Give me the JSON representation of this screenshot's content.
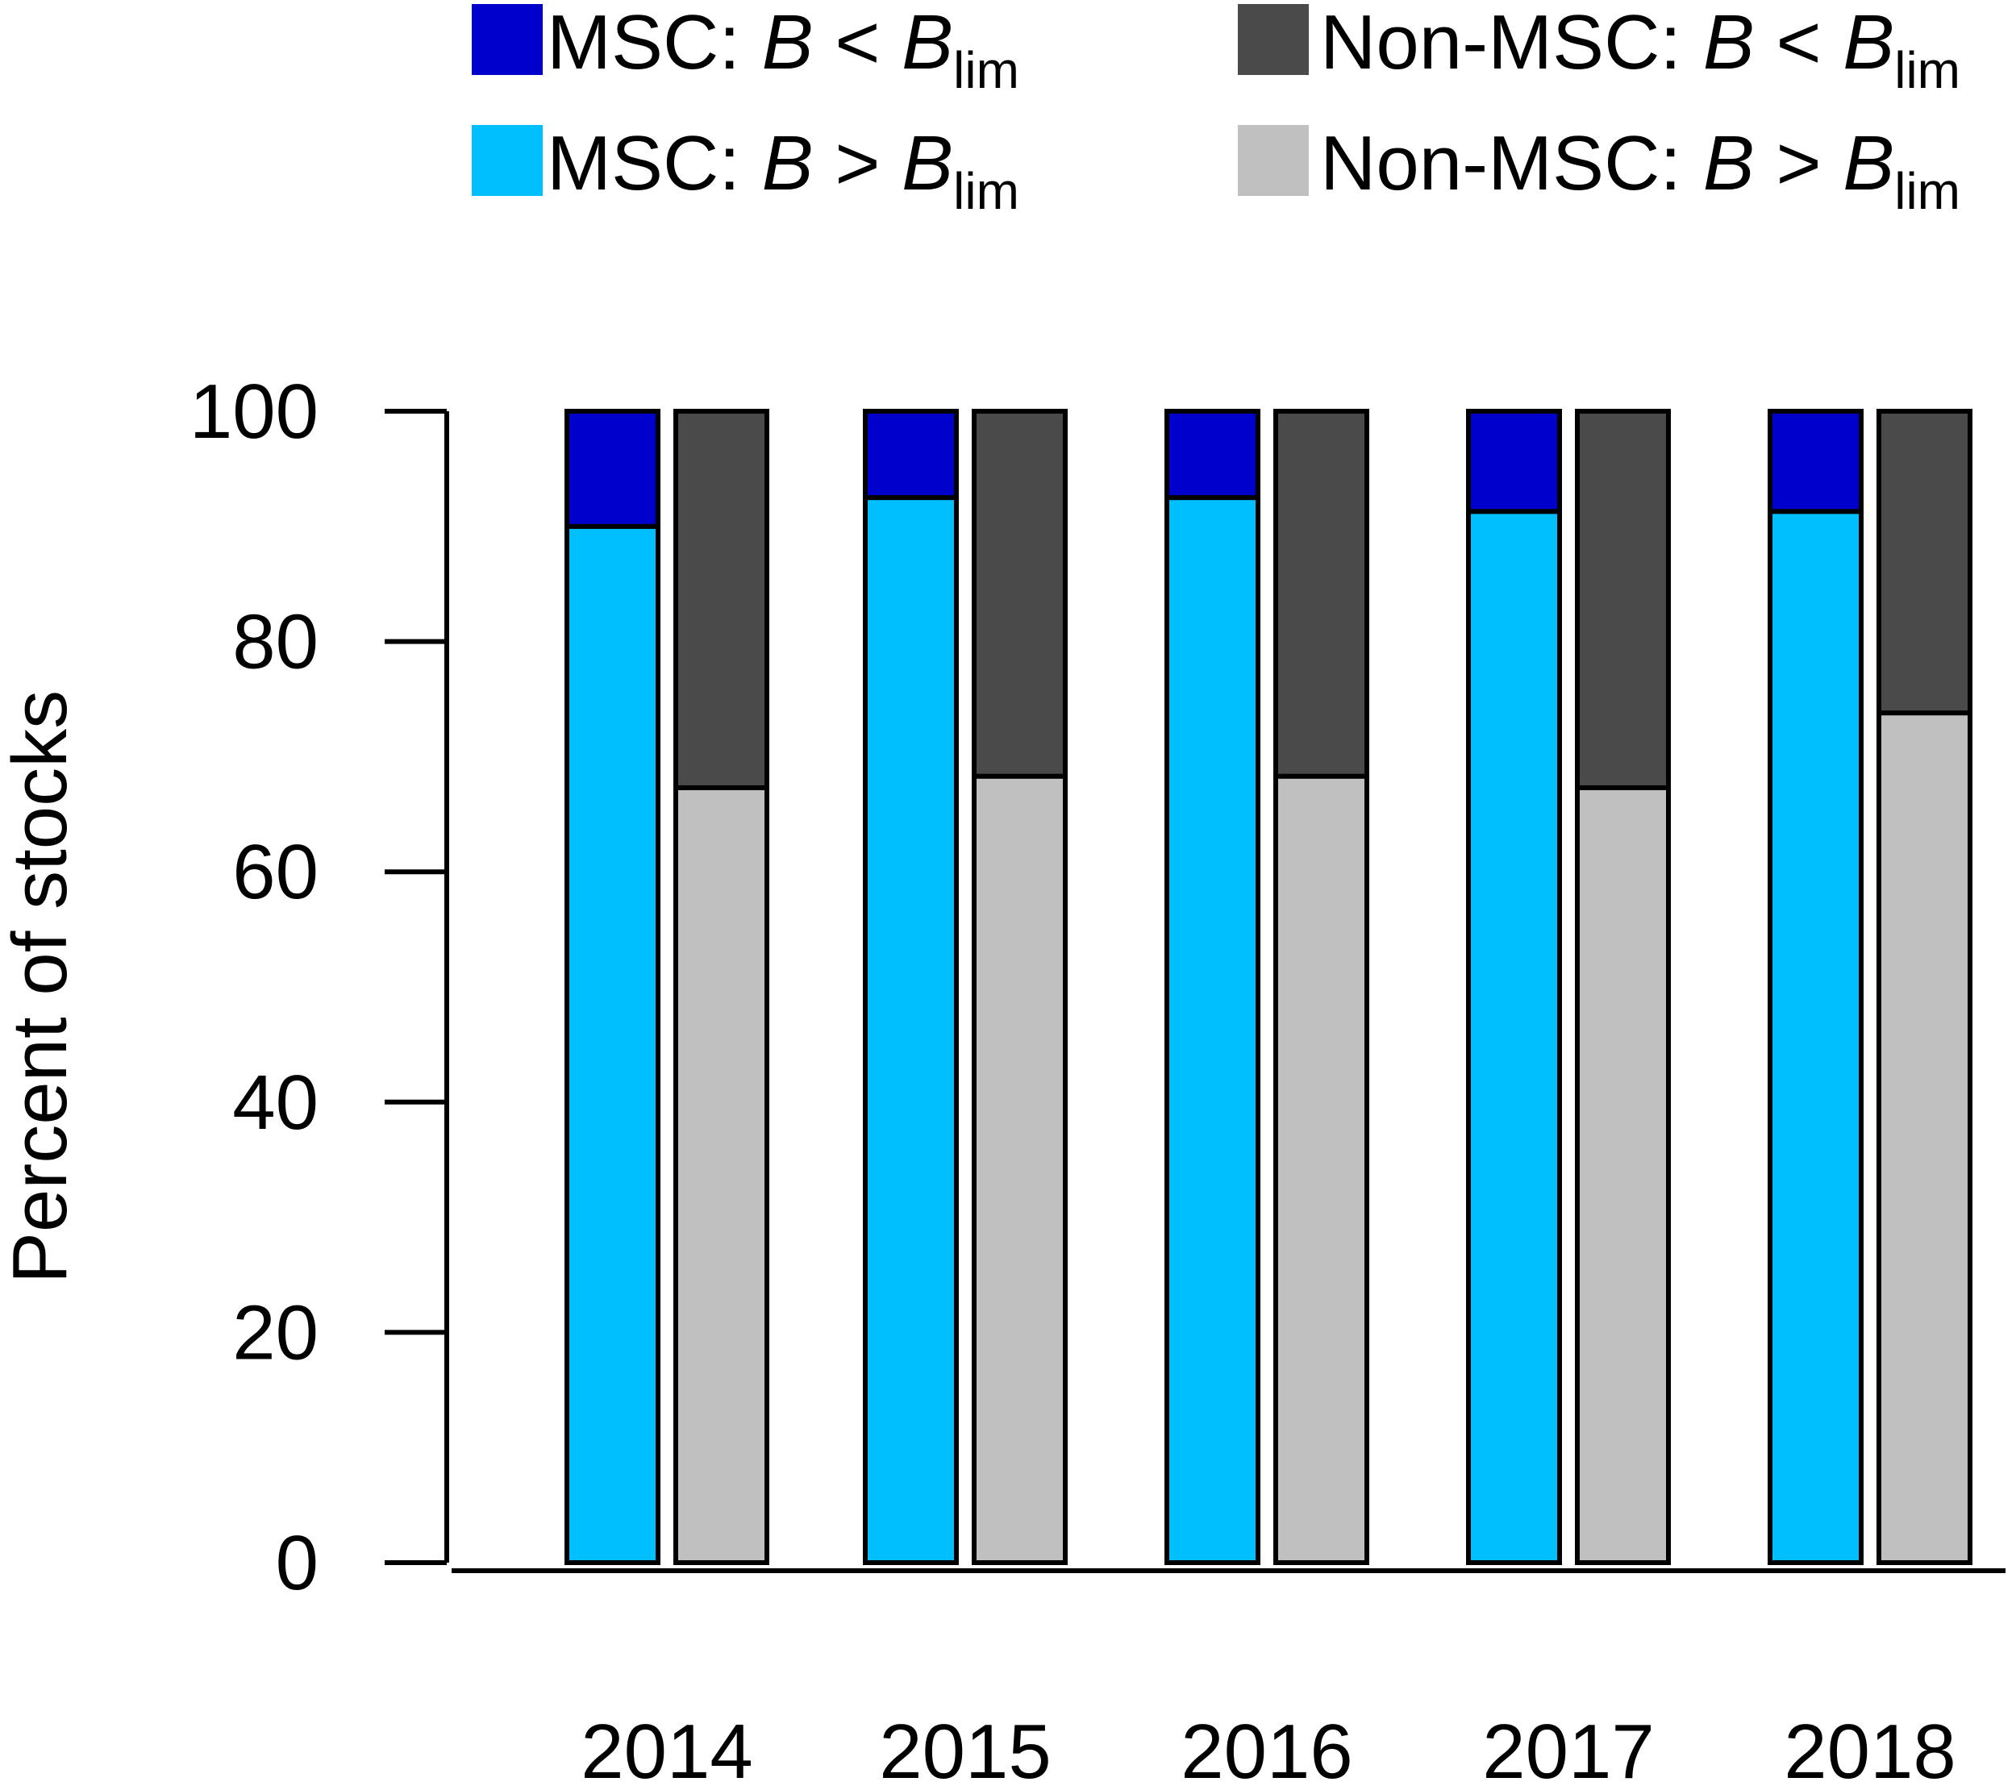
{
  "chart_data": {
    "type": "bar",
    "stacked": true,
    "title": "",
    "xlabel": "",
    "ylabel": "Percent of stocks",
    "ylim": [
      0,
      100
    ],
    "yticks": [
      0,
      20,
      40,
      60,
      80,
      100
    ],
    "grid": false,
    "legend_position": "top",
    "categories": [
      "2014",
      "2015",
      "2016",
      "2017",
      "2018"
    ],
    "groups": [
      {
        "name": "MSC",
        "series": [
          {
            "name": "MSC: B > Blim",
            "color": "#00BFFF",
            "values": [
              90,
              92.5,
              92.5,
              91.3,
              91.3
            ]
          },
          {
            "name": "MSC: B < Blim",
            "color": "#0000CD",
            "values": [
              10,
              7.5,
              7.5,
              8.7,
              8.7
            ]
          }
        ]
      },
      {
        "name": "Non-MSC",
        "series": [
          {
            "name": "Non-MSC: B > Blim",
            "color": "#C0C0C0",
            "values": [
              67.3,
              68.3,
              68.3,
              67.3,
              73.8
            ]
          },
          {
            "name": "Non-MSC: B < Blim",
            "color": "#4A4A4A",
            "values": [
              32.7,
              31.7,
              31.7,
              32.7,
              26.2
            ]
          }
        ]
      }
    ],
    "legend": [
      {
        "prefix": "MSC: ",
        "var": "B",
        "op": " < ",
        "lim_var": "B",
        "subscript": "lim",
        "color": "#0000CD"
      },
      {
        "prefix": "Non-MSC: ",
        "var": "B",
        "op": " < ",
        "lim_var": "B",
        "subscript": "lim",
        "color": "#4A4A4A"
      },
      {
        "prefix": "MSC: ",
        "var": "B",
        "op": " > ",
        "lim_var": "B",
        "subscript": "lim",
        "color": "#00BFFF"
      },
      {
        "prefix": "Non-MSC: ",
        "var": "B",
        "op": " > ",
        "lim_var": "B",
        "subscript": "lim",
        "color": "#C0C0C0"
      }
    ]
  }
}
